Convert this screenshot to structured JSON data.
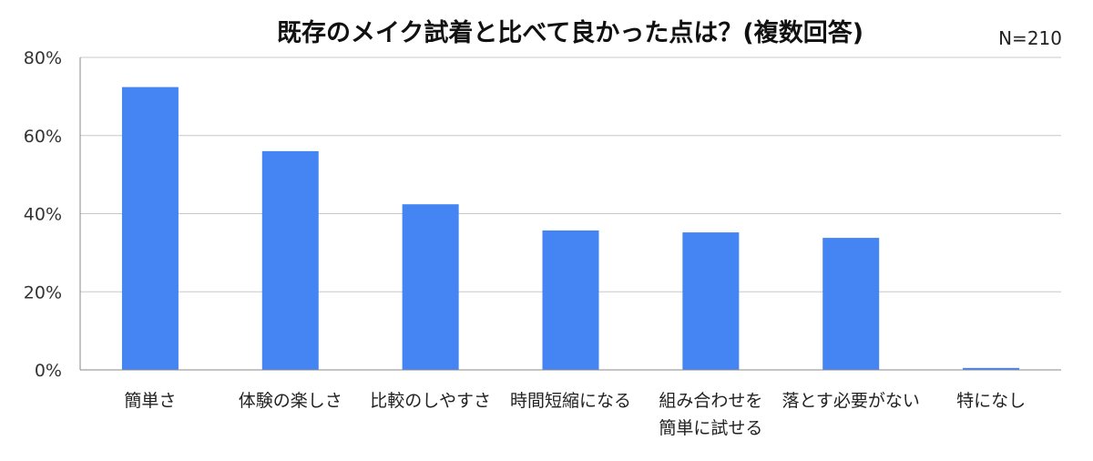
{
  "chart_data": {
    "type": "bar",
    "title": "既存のメイク試着と比べて良かった点は？(複数回答)",
    "annotation": "N=210",
    "categories": [
      [
        "簡単さ"
      ],
      [
        "体験の楽しさ"
      ],
      [
        "比較のしやすさ"
      ],
      [
        "時間短縮になる"
      ],
      [
        "組み合わせを",
        "簡単に試せる"
      ],
      [
        "落とす必要がない"
      ],
      [
        "特になし"
      ]
    ],
    "values": [
      72.4,
      56.0,
      42.4,
      35.7,
      35.2,
      33.8,
      0.5
    ],
    "y_ticks": [
      "0%",
      "20%",
      "40%",
      "60%",
      "80%"
    ],
    "ylim": [
      0,
      80
    ],
    "y_unit": "%",
    "grid": true,
    "bar_color": "#4485F3",
    "grid_color": "#C8C8C8",
    "axis_color": "#888888"
  }
}
